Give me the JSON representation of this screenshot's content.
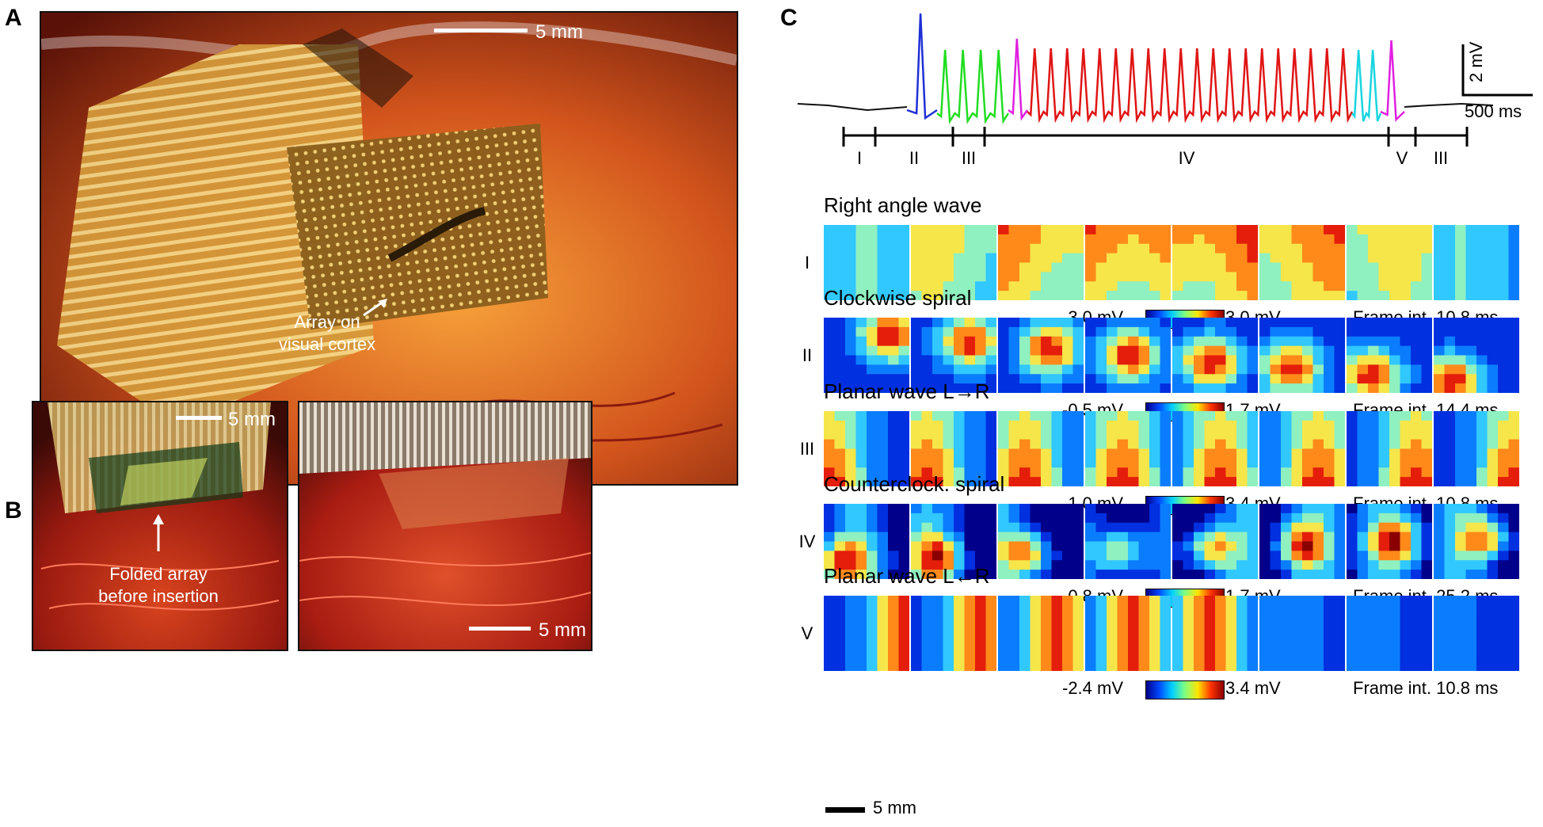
{
  "panels": {
    "a": "A",
    "b": "B",
    "c": "C"
  },
  "panel_a": {
    "scale": "5 mm",
    "callout_line1": "Array on",
    "callout_line2": "visual cortex"
  },
  "panel_b": {
    "left_scale": "5 mm",
    "right_scale": "5 mm",
    "callout_line1": "Folded array",
    "callout_line2": "before insertion"
  },
  "trace": {
    "scale_v": "2 mV",
    "scale_t": "500 ms",
    "segments": [
      {
        "label": "I",
        "color": "#1f2fd6"
      },
      {
        "label": "II",
        "color": "#22dd22"
      },
      {
        "label": "III",
        "color": "#e020e0"
      },
      {
        "label": "IV",
        "color": "#e01515"
      },
      {
        "label": "V",
        "color": "#19d5e0"
      },
      {
        "label": "III",
        "color": "#e020e0"
      }
    ],
    "baseline_color": "#111111"
  },
  "rows": [
    {
      "num": "I",
      "title": "Right angle wave",
      "cb_min": "-3.0 mV",
      "cb_max": "3.0 mV",
      "frame_int": "Frame int. 10.8 ms"
    },
    {
      "num": "II",
      "title": "Clockwise spiral",
      "cb_min": "-0.5 mV",
      "cb_max": "1.7 mV",
      "frame_int": "Frame int. 14.4 ms"
    },
    {
      "num": "III",
      "title": "Planar wave L→R",
      "cb_min": "-1.0 mV",
      "cb_max": "3.4 mV",
      "frame_int": "Frame int. 10.8 ms"
    },
    {
      "num": "IV",
      "title": "Counterclock. spiral",
      "cb_min": "-0.8 mV",
      "cb_max": "1.7 mV",
      "frame_int": "Frame int. 25.2 ms"
    },
    {
      "num": "V",
      "title": "Planar wave L←R",
      "cb_min": "-2.4 mV",
      "cb_max": "3.4 mV",
      "frame_int": "Frame int. 10.8 ms"
    }
  ],
  "frame_scale": "5 mm"
}
